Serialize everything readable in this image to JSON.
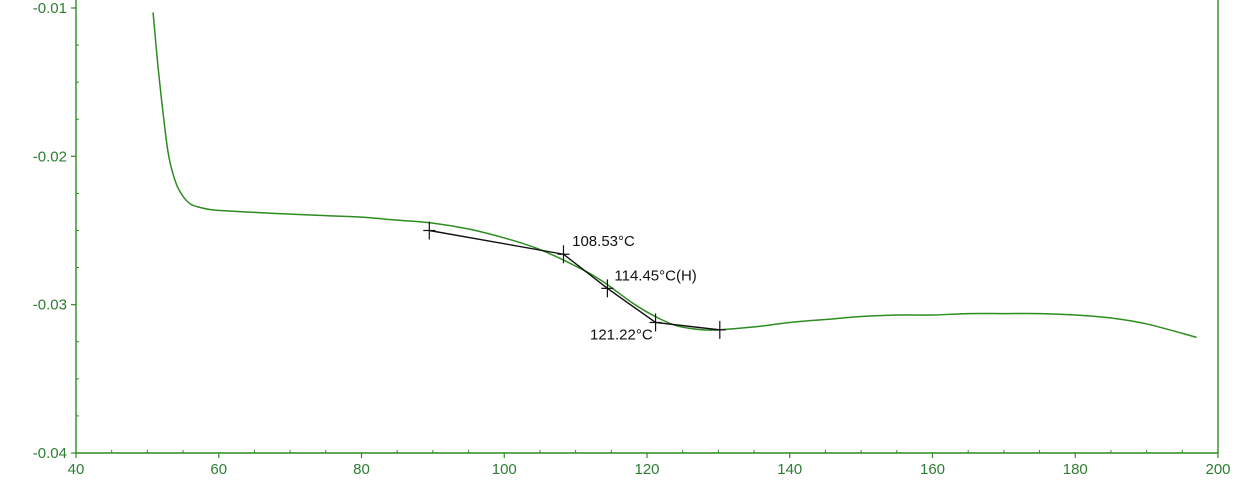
{
  "chart_data": {
    "type": "line",
    "xlim": [
      40,
      200
    ],
    "ylim": [
      -0.04,
      -0.01
    ],
    "x_ticks": [
      40,
      60,
      80,
      100,
      120,
      140,
      160,
      180,
      200
    ],
    "x_tick_labels": [
      "40",
      "60",
      "80",
      "100",
      "120",
      "140",
      "160",
      "180",
      "200"
    ],
    "y_ticks": [
      -0.04,
      -0.03,
      -0.02,
      -0.01
    ],
    "y_tick_labels": [
      "-0.04",
      "-0.03",
      "-0.02",
      "-0.01"
    ],
    "grid": false,
    "legend": "none",
    "colors": {
      "curve": "#2e8b22",
      "axes": "#2e8b22",
      "tangent": "#111111"
    },
    "series": [
      {
        "x": [
          50.8,
          51.5,
          52.3,
          53.0,
          54.0,
          55.0,
          56.0,
          57.0,
          59.0,
          62.0,
          66.0,
          70.0,
          75.0,
          80.0,
          85.0,
          90.0,
          95.0,
          100.0,
          104.0,
          107.0,
          110.0,
          112.0,
          114.0,
          116.0,
          118.0,
          120.0,
          122.0,
          124.0,
          126.0,
          128.0,
          130.0,
          135.0,
          140.0,
          145.0,
          150.0,
          155.0,
          160.0,
          165.0,
          170.0,
          175.0,
          180.0,
          185.0,
          190.0,
          197.0
        ],
        "y": [
          -0.0103,
          -0.014,
          -0.0175,
          -0.02,
          -0.0218,
          -0.0227,
          -0.0232,
          -0.0234,
          -0.0236,
          -0.0237,
          -0.0238,
          -0.0239,
          -0.024,
          -0.0241,
          -0.0243,
          -0.0245,
          -0.0249,
          -0.0255,
          -0.0261,
          -0.0267,
          -0.0274,
          -0.0279,
          -0.0285,
          -0.0292,
          -0.0299,
          -0.0305,
          -0.031,
          -0.0314,
          -0.0316,
          -0.0317,
          -0.0317,
          -0.0315,
          -0.0312,
          -0.031,
          -0.0308,
          -0.0307,
          -0.0307,
          -0.0306,
          -0.0306,
          -0.0306,
          -0.0307,
          -0.0309,
          -0.0313,
          -0.0322
        ]
      }
    ],
    "tangent": {
      "x": [
        89.5,
        108.3,
        114.45,
        121.2,
        130.2
      ],
      "y": [
        -0.025,
        -0.0266,
        -0.0289,
        -0.0312,
        -0.0317
      ]
    },
    "markers": [
      {
        "x": 89.5,
        "y": -0.025
      },
      {
        "x": 108.3,
        "y": -0.0266
      },
      {
        "x": 114.45,
        "y": -0.0289
      },
      {
        "x": 121.2,
        "y": -0.0312
      },
      {
        "x": 130.2,
        "y": -0.0317
      }
    ],
    "annotations": [
      {
        "text": "108.53°C",
        "x": 108.53,
        "y": -0.0266,
        "anchor": "above-right"
      },
      {
        "text": "114.45°C(H)",
        "x": 114.45,
        "y": -0.0289,
        "anchor": "above-right"
      },
      {
        "text": "121.22°C",
        "x": 121.22,
        "y": -0.0312,
        "anchor": "below-left"
      }
    ]
  }
}
